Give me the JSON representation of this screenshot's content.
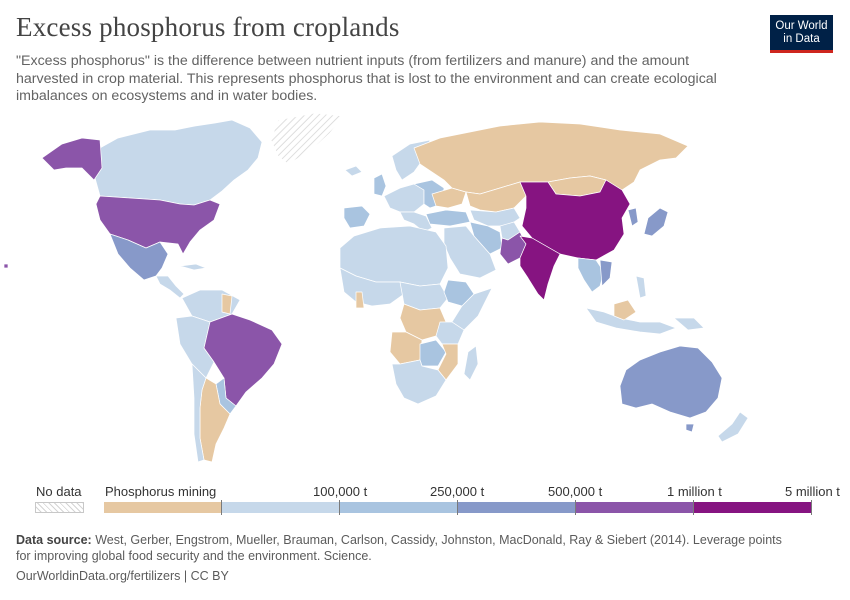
{
  "header": {
    "title": "Excess phosphorus from croplands",
    "subtitle": "\"Excess phosphorus\" is the difference between nutrient inputs (from fertilizers and manure) and the amount harvested in crop material. This represents phosphorus that is lost to the environment and can create ecological imbalances on ecosystems and in water bodies."
  },
  "logo": {
    "line1": "Our World",
    "line2": "in Data",
    "bg": "#002147",
    "accent": "#ce261e"
  },
  "colors": {
    "nodata": "#e0e0e0",
    "mining": "#e6c8a2",
    "bin1": "#c6d8ea",
    "bin2": "#a9c4e0",
    "bin3": "#8799c9",
    "bin4": "#8b55a9",
    "bin5": "#861481",
    "ocean": "#ffffff",
    "border": "#ffffff"
  },
  "legend": {
    "nodata_label": "No data",
    "mining_label": "Phosphorus mining",
    "ticks": [
      "100,000 t",
      "250,000 t",
      "500,000 t",
      "1 million t",
      "5 million t"
    ]
  },
  "footer": {
    "source_label": "Data source:",
    "source_text": "West, Gerber, Engstrom, Mueller, Brauman, Carlson, Cassidy, Johnston, MacDonald, Ray & Siebert (2014). Leverage points for improving global food security and the environment. Science.",
    "link_text": "OurWorldinData.org/fertilizers | CC BY"
  },
  "map_data": {
    "type": "choropleth",
    "unit": "tonnes of phosphorus",
    "regions": [
      {
        "name": "China",
        "bin": "5 million t"
      },
      {
        "name": "India",
        "bin": "5 million t"
      },
      {
        "name": "Pakistan",
        "bin": "1 million t"
      },
      {
        "name": "United States",
        "bin": "1 million t"
      },
      {
        "name": "Brazil",
        "bin": "1 million t"
      },
      {
        "name": "Alaska (United States)",
        "bin": "1 million t"
      },
      {
        "name": "Mexico",
        "bin": "500,000 t"
      },
      {
        "name": "Australia",
        "bin": "500,000 t"
      },
      {
        "name": "Japan",
        "bin": "500,000 t"
      },
      {
        "name": "Vietnam",
        "bin": "500,000 t"
      },
      {
        "name": "Ethiopia",
        "bin": "250,000 t"
      },
      {
        "name": "Iran",
        "bin": "250,000 t"
      },
      {
        "name": "Turkey",
        "bin": "250,000 t"
      },
      {
        "name": "Russia",
        "bin": "Phosphorus mining"
      },
      {
        "name": "Kazakhstan",
        "bin": "Phosphorus mining"
      },
      {
        "name": "Argentina",
        "bin": "Phosphorus mining"
      },
      {
        "name": "Angola",
        "bin": "Phosphorus mining"
      },
      {
        "name": "Democratic Republic of Congo",
        "bin": "Phosphorus mining"
      },
      {
        "name": "Mozambique",
        "bin": "Phosphorus mining"
      },
      {
        "name": "Ukraine",
        "bin": "Phosphorus mining"
      },
      {
        "name": "Greenland",
        "bin": "No data"
      },
      {
        "name": "Canada",
        "bin": "100,000 t"
      }
    ]
  }
}
